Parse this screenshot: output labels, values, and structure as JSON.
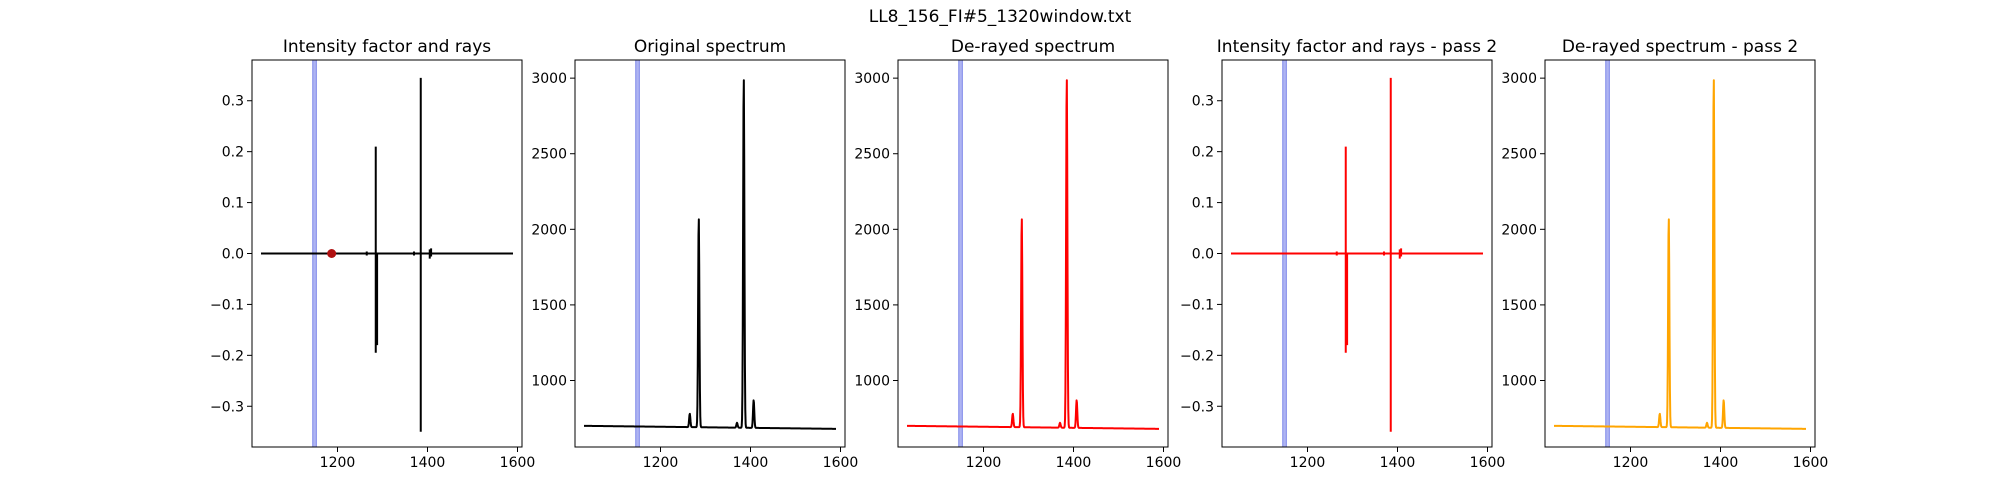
{
  "figure": {
    "suptitle": "LL8_156_FI#5_1320window.txt"
  },
  "chart_data": [
    {
      "type": "line",
      "title": "Intensity factor and rays",
      "xlabel": "",
      "ylabel": "",
      "xlim": [
        1010,
        1610
      ],
      "ylim": [
        -0.38,
        0.38
      ],
      "xticks": [
        1200,
        1400,
        1600
      ],
      "yticks": [
        -0.3,
        -0.2,
        -0.1,
        0.0,
        0.1,
        0.2,
        0.3
      ],
      "ytick_labels": [
        "−0.3",
        "−0.2",
        "−0.1",
        "0.0",
        "0.1",
        "0.2",
        "0.3"
      ],
      "window_band": [
        1145,
        1153
      ],
      "band_color": "#aeb4f2",
      "series": [
        {
          "color": "#000000",
          "baseline": 0.0,
          "x_range": [
            1030,
            1590
          ],
          "spikes": [
            {
              "x": 1265,
              "low": -0.004,
              "high": 0.004
            },
            {
              "x": 1285,
              "low": -0.195,
              "high": 0.21
            },
            {
              "x": 1288,
              "low": -0.18,
              "high": 0.0
            },
            {
              "x": 1370,
              "low": -0.004,
              "high": 0.004
            },
            {
              "x": 1385,
              "low": -0.35,
              "high": 0.345
            },
            {
              "x": 1405,
              "low": -0.01,
              "high": 0.008
            },
            {
              "x": 1408,
              "low": -0.006,
              "high": 0.01
            }
          ]
        }
      ],
      "marker": {
        "x": 1187,
        "y": 0.0,
        "color": "#b01010"
      }
    },
    {
      "type": "line",
      "title": "Original spectrum",
      "xlabel": "",
      "ylabel": "",
      "xlim": [
        1010,
        1610
      ],
      "ylim": [
        560,
        3120
      ],
      "xticks": [
        1200,
        1400,
        1600
      ],
      "yticks": [
        1000,
        1500,
        2000,
        2500,
        3000
      ],
      "ytick_labels": [
        "1000",
        "1500",
        "2000",
        "2500",
        "3000"
      ],
      "window_band": [
        1145,
        1153
      ],
      "band_color": "#aeb4f2",
      "series": [
        {
          "color": "#000000",
          "baseline_start": 700,
          "baseline_end": 680,
          "x_range": [
            1030,
            1590
          ],
          "peaks": [
            {
              "x": 1265,
              "height": 780
            },
            {
              "x": 1285,
              "height": 2080
            },
            {
              "x": 1370,
              "height": 720
            },
            {
              "x": 1385,
              "height": 3010
            },
            {
              "x": 1407,
              "height": 870
            }
          ]
        }
      ]
    },
    {
      "type": "line",
      "title": "De-rayed spectrum",
      "xlabel": "",
      "ylabel": "",
      "xlim": [
        1010,
        1610
      ],
      "ylim": [
        560,
        3120
      ],
      "xticks": [
        1200,
        1400,
        1600
      ],
      "yticks": [
        1000,
        1500,
        2000,
        2500,
        3000
      ],
      "ytick_labels": [
        "1000",
        "1500",
        "2000",
        "2500",
        "3000"
      ],
      "window_band": [
        1145,
        1153
      ],
      "band_color": "#aeb4f2",
      "series": [
        {
          "color": "#ff0000",
          "baseline_start": 700,
          "baseline_end": 680,
          "x_range": [
            1030,
            1590
          ],
          "peaks": [
            {
              "x": 1265,
              "height": 780
            },
            {
              "x": 1285,
              "height": 2080
            },
            {
              "x": 1370,
              "height": 720
            },
            {
              "x": 1385,
              "height": 3010
            },
            {
              "x": 1407,
              "height": 870
            }
          ]
        }
      ]
    },
    {
      "type": "line",
      "title": "Intensity factor and rays - pass 2",
      "xlabel": "",
      "ylabel": "",
      "xlim": [
        1010,
        1610
      ],
      "ylim": [
        -0.38,
        0.38
      ],
      "xticks": [
        1200,
        1400,
        1600
      ],
      "yticks": [
        -0.3,
        -0.2,
        -0.1,
        0.0,
        0.1,
        0.2,
        0.3
      ],
      "ytick_labels": [
        "−0.3",
        "−0.2",
        "−0.1",
        "0.0",
        "0.1",
        "0.2",
        "0.3"
      ],
      "window_band": [
        1145,
        1153
      ],
      "band_color": "#aeb4f2",
      "series": [
        {
          "color": "#ff0000",
          "baseline": 0.0,
          "x_range": [
            1030,
            1590
          ],
          "spikes": [
            {
              "x": 1265,
              "low": -0.004,
              "high": 0.004
            },
            {
              "x": 1285,
              "low": -0.195,
              "high": 0.21
            },
            {
              "x": 1288,
              "low": -0.18,
              "high": 0.0
            },
            {
              "x": 1370,
              "low": -0.004,
              "high": 0.004
            },
            {
              "x": 1385,
              "low": -0.35,
              "high": 0.345
            },
            {
              "x": 1405,
              "low": -0.01,
              "high": 0.008
            },
            {
              "x": 1408,
              "low": -0.006,
              "high": 0.01
            }
          ]
        }
      ]
    },
    {
      "type": "line",
      "title": "De-rayed spectrum - pass 2",
      "xlabel": "",
      "ylabel": "",
      "xlim": [
        1010,
        1610
      ],
      "ylim": [
        560,
        3120
      ],
      "xticks": [
        1200,
        1400,
        1600
      ],
      "yticks": [
        1000,
        1500,
        2000,
        2500,
        3000
      ],
      "ytick_labels": [
        "1000",
        "1500",
        "2000",
        "2500",
        "3000"
      ],
      "window_band": [
        1145,
        1153
      ],
      "band_color": "#aeb4f2",
      "series": [
        {
          "color": "#ffa500",
          "baseline_start": 700,
          "baseline_end": 680,
          "x_range": [
            1030,
            1590
          ],
          "peaks": [
            {
              "x": 1265,
              "height": 780
            },
            {
              "x": 1285,
              "height": 2080
            },
            {
              "x": 1370,
              "height": 720
            },
            {
              "x": 1385,
              "height": 3010
            },
            {
              "x": 1407,
              "height": 870
            }
          ]
        }
      ]
    }
  ]
}
